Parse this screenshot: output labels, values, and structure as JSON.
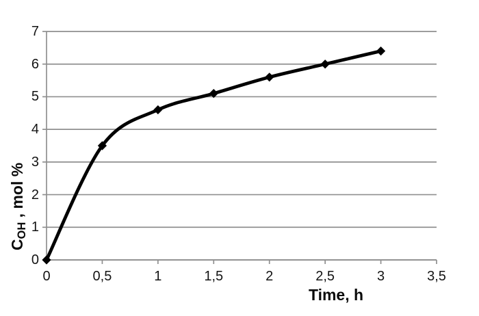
{
  "chart_data": {
    "type": "line",
    "title": "",
    "xlabel": "Time, h",
    "ylabel": "C_OH , mol %",
    "ylabel_parts": {
      "main": "C",
      "sub": "OH",
      "rest": " , mol %"
    },
    "x": [
      0,
      0.5,
      1,
      1.5,
      2,
      2.5,
      3
    ],
    "series": [
      {
        "name": "C_OH",
        "values": [
          0,
          3.5,
          4.6,
          5.1,
          5.6,
          6.0,
          6.4
        ]
      }
    ],
    "xlim": [
      0,
      3.5
    ],
    "ylim": [
      0,
      7
    ],
    "x_ticks": [
      {
        "v": 0,
        "label": "0"
      },
      {
        "v": 0.5,
        "label": "0,5"
      },
      {
        "v": 1,
        "label": "1"
      },
      {
        "v": 1.5,
        "label": "1,5"
      },
      {
        "v": 2,
        "label": "2"
      },
      {
        "v": 2.5,
        "label": "2,5"
      },
      {
        "v": 3,
        "label": "3"
      },
      {
        "v": 3.5,
        "label": "3,5"
      }
    ],
    "y_ticks": [
      {
        "v": 0,
        "label": "0"
      },
      {
        "v": 1,
        "label": "1"
      },
      {
        "v": 2,
        "label": "2"
      },
      {
        "v": 3,
        "label": "3"
      },
      {
        "v": 4,
        "label": "4"
      },
      {
        "v": 5,
        "label": "5"
      },
      {
        "v": 6,
        "label": "6"
      },
      {
        "v": 7,
        "label": "7"
      }
    ],
    "grid": "horizontal",
    "legend": "none",
    "smooth": true,
    "marker": "diamond",
    "line_color": "#000000",
    "marker_color": "#000000",
    "grid_color": "#8f8f8f",
    "axis_color": "#8f8f8f",
    "text_color": "#141414"
  }
}
